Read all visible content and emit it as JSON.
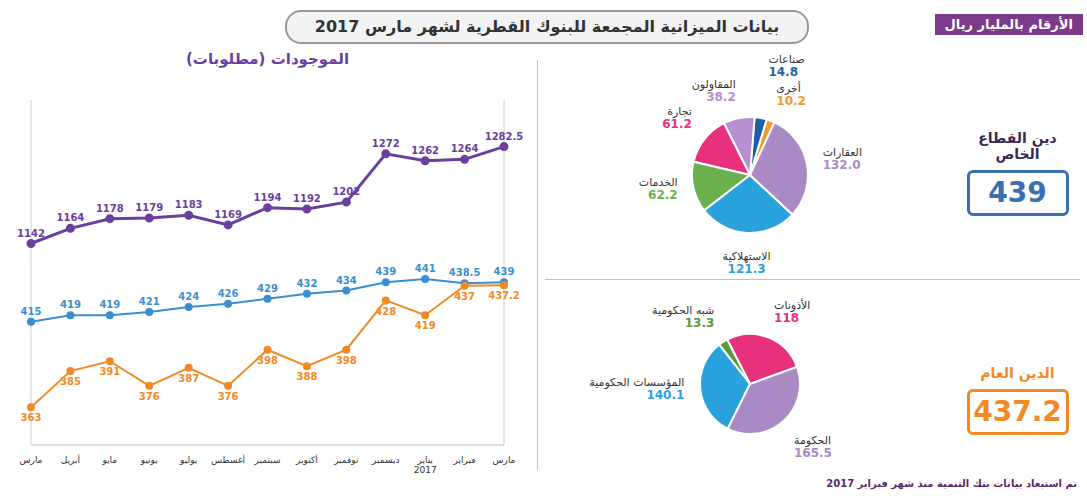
{
  "title": "بيانات الميزانية المجمعة للبنوك القطرية لشهر مارس 2017",
  "units_note": "الأرقام بالمليار ريال",
  "footnote": "تم استبعاد بيانات بنك التنمية منذ شهر فبراير 2017",
  "chart_data": [
    {
      "type": "line",
      "title": "الموجودات (مطلوبات)",
      "categories": [
        "مارس",
        "أبريل",
        "مايو",
        "يونيو",
        "يوليو",
        "أغسطس",
        "سبتمبر",
        "أكتوبر",
        "نوفمبر",
        "ديسمبر",
        "يناير 2017",
        "فبراير",
        "مارس"
      ],
      "series": [
        {
          "color": "#6b3fa0",
          "axis": "y2",
          "marker": "circle",
          "line_style": "solid",
          "values": [
            1142,
            1164,
            1178,
            1179,
            1183,
            1169,
            1194,
            1192,
            1202,
            1272,
            1262,
            1264,
            1282.5
          ]
        },
        {
          "color": "#3a8fd0",
          "marker": "circle",
          "line_style": "solid",
          "values": [
            415,
            419,
            419,
            421,
            424,
            426,
            429,
            432,
            434,
            439,
            441,
            438.5,
            439
          ]
        },
        {
          "color": "#f08a24",
          "marker": "circle",
          "line_style": "solid",
          "values": [
            363,
            385,
            391,
            376,
            387,
            376,
            398,
            388,
            398,
            428,
            419,
            437,
            437.2
          ]
        }
      ],
      "ylim": [
        340,
        550
      ],
      "y2lim": [
        850,
        1350
      ],
      "tick_labels": "x",
      "data_labels": true,
      "grid": false
    },
    {
      "type": "pie",
      "title": "دين القطاع الخاص",
      "total": 439,
      "categories": [
        "أخرى",
        "صناعات",
        "المقاولون",
        "تجارة",
        "الخدمات",
        "الاستهلاكية",
        "العقارات"
      ],
      "values": [
        10.2,
        14.8,
        38.2,
        61.2,
        62.2,
        121.3,
        132.0
      ],
      "value_labels": [
        "10.2",
        "14.8",
        "38.2",
        "61.2",
        "62.2",
        "121.3",
        "132.0"
      ],
      "colors": [
        "#f29a2e",
        "#1f5fa8",
        "#b58fcf",
        "#e8317c",
        "#6ab04c",
        "#2aa3dc",
        "#a98ac4"
      ],
      "data_labels": true
    },
    {
      "type": "pie",
      "title": "الدين العام",
      "total": 437.2,
      "categories": [
        "الأذونات",
        "شبه الحكومية",
        "المؤسسات الحكومية",
        "الحكومة"
      ],
      "values": [
        118,
        13.3,
        140.1,
        165.5
      ],
      "colors": [
        "#e8317c",
        "#5a9a3a",
        "#2aa3dc",
        "#a98ac4"
      ],
      "data_labels": true
    }
  ]
}
